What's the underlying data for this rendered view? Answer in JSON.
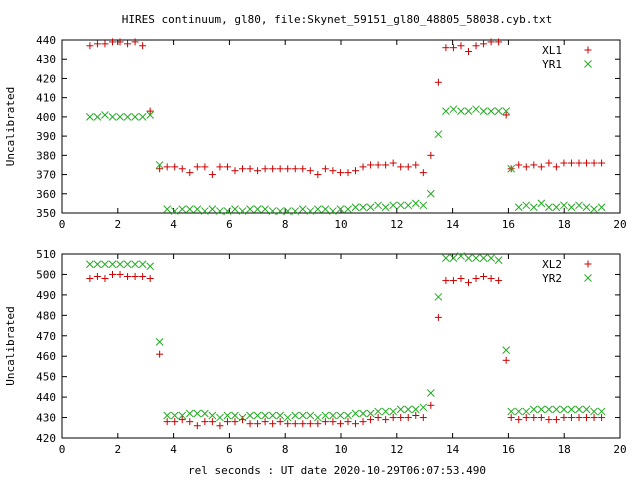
{
  "title": "HIRES continuum, gl80, file:Skynet_59151_gl80_48805_58038.cyb.txt",
  "xlabel": "rel seconds : UT date 2020-10-29T06:07:53.490",
  "colors": {
    "red": "#cc0000",
    "green": "#22aa22",
    "axis": "#000000"
  },
  "chart_data": [
    {
      "type": "scatter",
      "ylabel": "Uncalibrated",
      "xlim": [
        0,
        20
      ],
      "ylim": [
        350,
        440
      ],
      "xticks": [
        0,
        2,
        4,
        6,
        8,
        10,
        12,
        14,
        16,
        18,
        20
      ],
      "yticks": [
        350,
        360,
        370,
        380,
        390,
        400,
        410,
        420,
        430,
        440
      ],
      "legend_position": "top-right",
      "series": [
        {
          "name": "XL1",
          "marker": "plus",
          "color": "#cc0000",
          "x": [
            1.0,
            1.27,
            1.54,
            1.81,
            2.08,
            2.35,
            2.62,
            2.89,
            3.16,
            3.5,
            3.77,
            4.04,
            4.31,
            4.58,
            4.85,
            5.12,
            5.39,
            5.66,
            5.93,
            6.2,
            6.47,
            6.74,
            7.01,
            7.28,
            7.55,
            7.82,
            8.09,
            8.36,
            8.63,
            8.9,
            9.17,
            9.44,
            9.71,
            9.98,
            10.25,
            10.52,
            10.79,
            11.06,
            11.33,
            11.6,
            11.87,
            12.14,
            12.41,
            12.68,
            12.95,
            13.22,
            13.49,
            13.76,
            14.03,
            14.3,
            14.57,
            14.84,
            15.11,
            15.38,
            15.65,
            15.92,
            16.1,
            16.37,
            16.64,
            16.91,
            17.18,
            17.45,
            17.72,
            17.99,
            18.26,
            18.53,
            18.8,
            19.07,
            19.34
          ],
          "y": [
            437,
            438,
            438,
            439,
            439,
            438,
            439,
            437,
            403,
            373,
            374,
            374,
            373,
            371,
            374,
            374,
            370,
            374,
            374,
            372,
            373,
            373,
            372,
            373,
            373,
            373,
            373,
            373,
            373,
            372,
            370,
            373,
            372,
            371,
            371,
            372,
            374,
            375,
            375,
            375,
            376,
            374,
            374,
            375,
            371,
            380,
            418,
            436,
            436,
            437,
            434,
            437,
            438,
            439,
            439,
            401,
            373,
            375,
            374,
            375,
            374,
            376,
            374,
            376,
            376,
            376,
            376,
            376,
            376
          ],
          "_": ""
        },
        {
          "name": "YR1",
          "marker": "cross",
          "color": "#22aa22",
          "x": [
            1.0,
            1.27,
            1.54,
            1.81,
            2.08,
            2.35,
            2.62,
            2.89,
            3.16,
            3.5,
            3.77,
            4.04,
            4.31,
            4.58,
            4.85,
            5.12,
            5.39,
            5.66,
            5.93,
            6.2,
            6.47,
            6.74,
            7.01,
            7.28,
            7.55,
            7.82,
            8.09,
            8.36,
            8.63,
            8.9,
            9.17,
            9.44,
            9.71,
            9.98,
            10.25,
            10.52,
            10.79,
            11.06,
            11.33,
            11.6,
            11.87,
            12.14,
            12.41,
            12.68,
            12.95,
            13.22,
            13.49,
            13.76,
            14.03,
            14.3,
            14.57,
            14.84,
            15.11,
            15.38,
            15.65,
            15.92,
            16.1,
            16.37,
            16.64,
            16.91,
            17.18,
            17.45,
            17.72,
            17.99,
            18.26,
            18.53,
            18.8,
            19.07,
            19.34
          ],
          "y": [
            400,
            400,
            401,
            400,
            400,
            400,
            400,
            400,
            401,
            375,
            352,
            351,
            352,
            352,
            352,
            351,
            352,
            351,
            351,
            352,
            351,
            352,
            352,
            352,
            351,
            351,
            351,
            351,
            352,
            351,
            352,
            352,
            351,
            352,
            352,
            353,
            353,
            353,
            354,
            353,
            354,
            354,
            354,
            355,
            354,
            360,
            391,
            403,
            404,
            403,
            403,
            404,
            403,
            403,
            403,
            403,
            373,
            353,
            354,
            353,
            355,
            353,
            353,
            354,
            353,
            354,
            353,
            352,
            353
          ],
          "_": ""
        }
      ]
    },
    {
      "type": "scatter",
      "ylabel": "Uncalibrated",
      "xlim": [
        0,
        20
      ],
      "ylim": [
        420,
        510
      ],
      "xticks": [
        0,
        2,
        4,
        6,
        8,
        10,
        12,
        14,
        16,
        18,
        20
      ],
      "yticks": [
        420,
        430,
        440,
        450,
        460,
        470,
        480,
        490,
        500,
        510
      ],
      "legend_position": "top-right",
      "series": [
        {
          "name": "XL2",
          "marker": "plus",
          "color": "#cc0000",
          "x": [
            1.0,
            1.27,
            1.54,
            1.81,
            2.08,
            2.35,
            2.62,
            2.89,
            3.16,
            3.5,
            3.77,
            4.04,
            4.31,
            4.58,
            4.85,
            5.12,
            5.39,
            5.66,
            5.93,
            6.2,
            6.47,
            6.74,
            7.01,
            7.28,
            7.55,
            7.82,
            8.09,
            8.36,
            8.63,
            8.9,
            9.17,
            9.44,
            9.71,
            9.98,
            10.25,
            10.52,
            10.79,
            11.06,
            11.33,
            11.6,
            11.87,
            12.14,
            12.41,
            12.68,
            12.95,
            13.22,
            13.49,
            13.76,
            14.03,
            14.3,
            14.57,
            14.84,
            15.11,
            15.38,
            15.65,
            15.92,
            16.1,
            16.37,
            16.64,
            16.91,
            17.18,
            17.45,
            17.72,
            17.99,
            18.26,
            18.53,
            18.8,
            19.07,
            19.34
          ],
          "y": [
            498,
            499,
            498,
            500,
            500,
            499,
            499,
            499,
            498,
            461,
            428,
            428,
            429,
            428,
            426,
            428,
            428,
            426,
            428,
            428,
            429,
            427,
            427,
            428,
            427,
            428,
            427,
            427,
            427,
            427,
            427,
            428,
            428,
            427,
            428,
            427,
            428,
            429,
            430,
            429,
            430,
            430,
            430,
            431,
            430,
            436,
            479,
            497,
            497,
            498,
            496,
            498,
            499,
            498,
            497,
            458,
            430,
            429,
            430,
            430,
            430,
            429,
            429,
            430,
            430,
            430,
            430,
            430,
            430
          ],
          "_": ""
        },
        {
          "name": "YR2",
          "marker": "cross",
          "color": "#22aa22",
          "x": [
            1.0,
            1.27,
            1.54,
            1.81,
            2.08,
            2.35,
            2.62,
            2.89,
            3.16,
            3.5,
            3.77,
            4.04,
            4.31,
            4.58,
            4.85,
            5.12,
            5.39,
            5.66,
            5.93,
            6.2,
            6.47,
            6.74,
            7.01,
            7.28,
            7.55,
            7.82,
            8.09,
            8.36,
            8.63,
            8.9,
            9.17,
            9.44,
            9.71,
            9.98,
            10.25,
            10.52,
            10.79,
            11.06,
            11.33,
            11.6,
            11.87,
            12.14,
            12.41,
            12.68,
            12.95,
            13.22,
            13.49,
            13.76,
            14.03,
            14.3,
            14.57,
            14.84,
            15.11,
            15.38,
            15.65,
            15.92,
            16.1,
            16.37,
            16.64,
            16.91,
            17.18,
            17.45,
            17.72,
            17.99,
            18.26,
            18.53,
            18.8,
            19.07,
            19.34
          ],
          "y": [
            505,
            505,
            505,
            505,
            505,
            505,
            505,
            505,
            504,
            467,
            431,
            431,
            431,
            432,
            432,
            432,
            431,
            430,
            431,
            431,
            430,
            431,
            431,
            431,
            431,
            431,
            430,
            431,
            431,
            431,
            430,
            431,
            431,
            431,
            431,
            432,
            432,
            432,
            433,
            433,
            433,
            434,
            434,
            434,
            435,
            442,
            489,
            508,
            508,
            509,
            508,
            508,
            508,
            508,
            507,
            463,
            433,
            433,
            433,
            434,
            434,
            434,
            434,
            434,
            434,
            434,
            434,
            433,
            433
          ],
          "_": ""
        }
      ]
    }
  ]
}
